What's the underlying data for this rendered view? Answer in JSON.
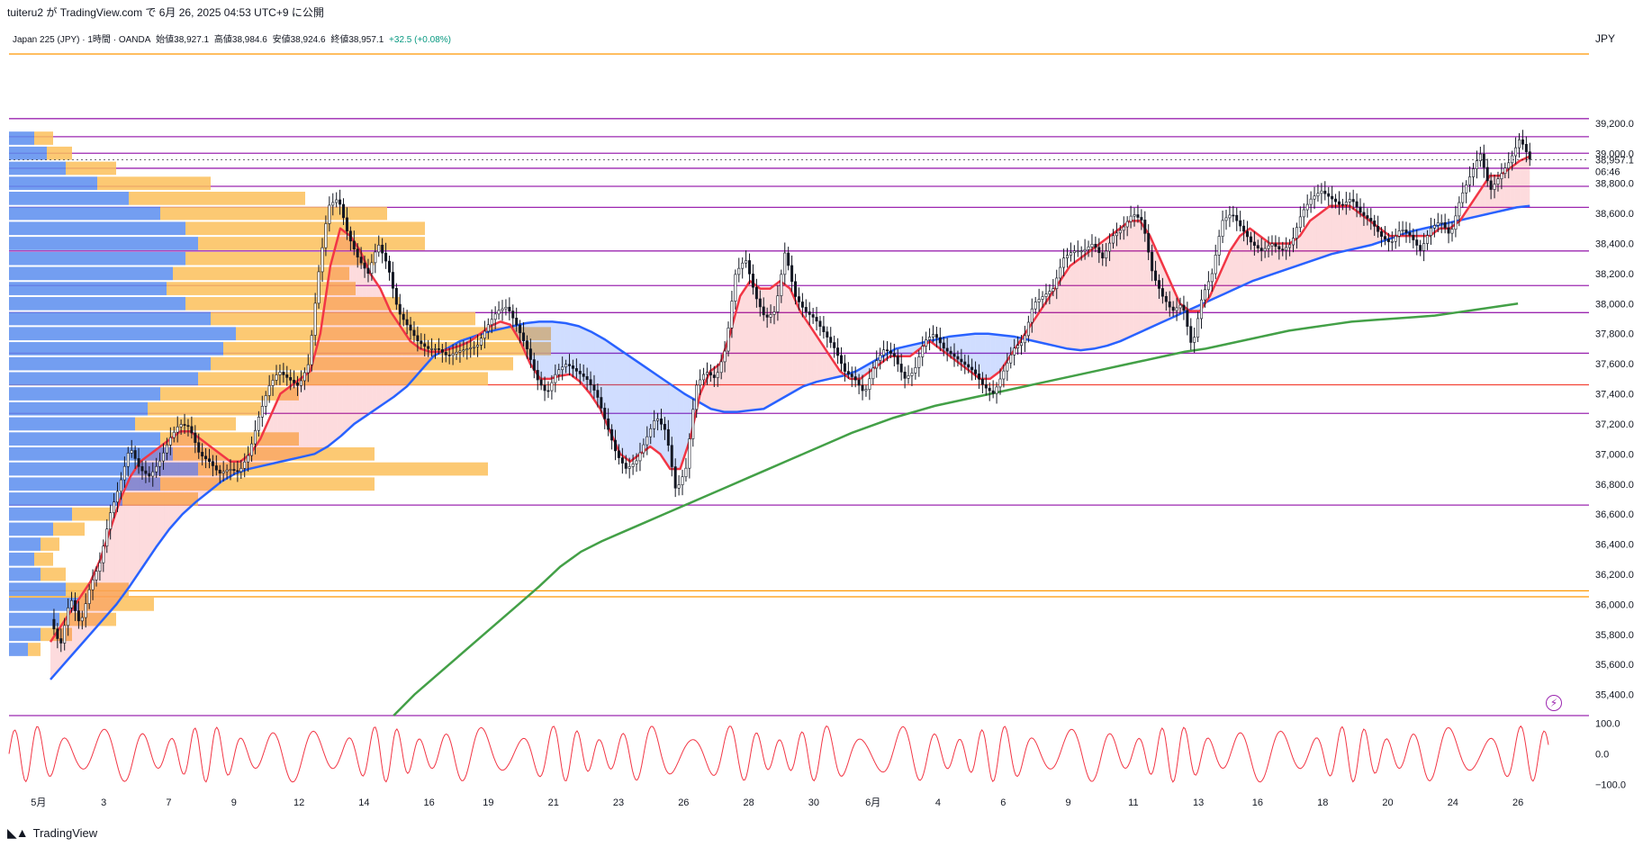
{
  "header": {
    "publish_text": "tuiteru2 が TradingView.com で 6月 26, 2025 04:53 UTC+9 に公開"
  },
  "symbol_info": {
    "name": "Japan 225 (JPY) · 1時間 · OANDA",
    "open": "始値38,927.1",
    "high": "高値38,984.6",
    "low": "安値38,924.6",
    "close": "終値38,957.1",
    "change": "+32.5 (+0.08%)"
  },
  "currency_label": "JPY",
  "last_price": "38,957.1",
  "countdown": "06:46",
  "footer": {
    "brand": "TradingView",
    "icon": "tradingview-logo-icon"
  },
  "alert_icon": "lightning-bolt-icon",
  "colors": {
    "candles": "#131722",
    "ema_fast": "#f23645",
    "ema_mid": "#2962ff",
    "sma_long": "#43a047",
    "hlines": "#9c27b0",
    "hline_red": "#f44336",
    "hline_orange": "#ff9800",
    "vp_up": "#5b8def",
    "vp_down": "#fbbf5a",
    "oscillator": "#f23645"
  },
  "chart_data": {
    "type": "candlestick",
    "timeframe": "1h",
    "y_axis": {
      "ticks": [
        "39,200.0",
        "39,000.0",
        "38,800.0",
        "38,600.0",
        "38,400.0",
        "38,200.0",
        "38,000.0",
        "37,800.0",
        "37,600.0",
        "37,400.0",
        "37,200.0",
        "37,000.0",
        "36,800.0",
        "36,600.0",
        "36,400.0",
        "36,200.0",
        "36,000.0",
        "35,800.0",
        "35,600.0",
        "35,400.0"
      ],
      "tick_values": [
        39200,
        39000,
        38800,
        38600,
        38400,
        38200,
        38000,
        37800,
        37600,
        37400,
        37200,
        37000,
        36800,
        36600,
        36400,
        36200,
        36000,
        35800,
        35600,
        35400
      ],
      "ylim": [
        35260,
        39660
      ]
    },
    "x_axis": {
      "ticks": [
        "5月",
        "3",
        "7",
        "9",
        "12",
        "14",
        "16",
        "19",
        "21",
        "23",
        "26",
        "28",
        "30",
        "6月",
        "4",
        "6",
        "9",
        "11",
        "13",
        "16",
        "18",
        "20",
        "24",
        "26"
      ],
      "tick_index": [
        0,
        11,
        22,
        33,
        44,
        55,
        66,
        76,
        87,
        98,
        109,
        120,
        131,
        141,
        152,
        163,
        174,
        185,
        196,
        206,
        217,
        228,
        239,
        250
      ],
      "xlim": [
        -5,
        262
      ]
    },
    "candles_close": [
      35900,
      35720,
      36050,
      35860,
      36120,
      36280,
      36600,
      36800,
      37050,
      36900,
      36850,
      36950,
      37100,
      37200,
      37180,
      37000,
      36950,
      36870,
      36900,
      36880,
      37000,
      37250,
      37450,
      37550,
      37500,
      37450,
      37600,
      38200,
      38650,
      38700,
      38450,
      38300,
      38200,
      38400,
      38250,
      37950,
      37850,
      37750,
      37700,
      37700,
      37650,
      37680,
      37700,
      37720,
      37850,
      37950,
      37980,
      37850,
      37700,
      37500,
      37400,
      37550,
      37600,
      37550,
      37500,
      37400,
      37200,
      37000,
      36900,
      36950,
      37100,
      37250,
      37150,
      36750,
      36900,
      37450,
      37550,
      37500,
      37700,
      38200,
      38300,
      38050,
      37900,
      37950,
      38350,
      38050,
      37950,
      37900,
      37800,
      37700,
      37550,
      37500,
      37400,
      37600,
      37700,
      37650,
      37500,
      37550,
      37750,
      37800,
      37700,
      37650,
      37600,
      37550,
      37450,
      37400,
      37550,
      37700,
      37750,
      38000,
      38050,
      38100,
      38300,
      38350,
      38350,
      38400,
      38300,
      38450,
      38500,
      38600,
      38550,
      38200,
      38050,
      37950,
      38000,
      37700,
      38050,
      38200,
      38550,
      38600,
      38500,
      38400,
      38350,
      38400,
      38350,
      38400,
      38600,
      38700,
      38750,
      38700,
      38650,
      38700,
      38600,
      38550,
      38450,
      38400,
      38500,
      38450,
      38350,
      38500,
      38550,
      38450,
      38700,
      38850,
      39000,
      38750,
      38850,
      38950,
      39100,
      38960
    ],
    "ema_fast": [
      35750,
      35850,
      35950,
      36050,
      36150,
      36300,
      36500,
      36700,
      36850,
      36950,
      37000,
      37050,
      37100,
      37150,
      37150,
      37100,
      37050,
      37000,
      36950,
      36950,
      37000,
      37100,
      37250,
      37400,
      37450,
      37500,
      37550,
      37800,
      38250,
      38500,
      38450,
      38350,
      38200,
      38100,
      37950,
      37850,
      37750,
      37700,
      37680,
      37680,
      37700,
      37720,
      37750,
      37800,
      37850,
      37880,
      37860,
      37750,
      37600,
      37500,
      37500,
      37520,
      37530,
      37480,
      37400,
      37300,
      37150,
      37000,
      36950,
      37000,
      37050,
      37000,
      36900,
      36900,
      37100,
      37400,
      37550,
      37600,
      37800,
      38050,
      38150,
      38100,
      38100,
      38150,
      38100,
      37950,
      37850,
      37750,
      37650,
      37550,
      37500,
      37500,
      37550,
      37600,
      37650,
      37650,
      37650,
      37700,
      37750,
      37700,
      37650,
      37600,
      37550,
      37500,
      37500,
      37550,
      37650,
      37750,
      37850,
      37950,
      38050,
      38150,
      38250,
      38300,
      38350,
      38400,
      38450,
      38500,
      38550,
      38550,
      38450,
      38300,
      38150,
      38000,
      37950,
      37950,
      38050,
      38200,
      38350,
      38450,
      38500,
      38450,
      38400,
      38400,
      38400,
      38450,
      38550,
      38600,
      38650,
      38650,
      38650,
      38600,
      38550,
      38500,
      38450,
      38450,
      38450,
      38450,
      38450,
      38500,
      38500,
      38550,
      38650,
      38750,
      38850,
      38850,
      38900,
      38950,
      38980
    ],
    "ema_mid": [
      35500,
      35600,
      35700,
      35800,
      35900,
      36000,
      36120,
      36250,
      36380,
      36500,
      36600,
      36680,
      36750,
      36820,
      36870,
      36900,
      36920,
      36940,
      36960,
      36980,
      37000,
      37050,
      37120,
      37200,
      37260,
      37320,
      37380,
      37450,
      37550,
      37650,
      37700,
      37750,
      37780,
      37810,
      37830,
      37850,
      37870,
      37880,
      37880,
      37870,
      37850,
      37810,
      37760,
      37700,
      37640,
      37580,
      37520,
      37460,
      37400,
      37350,
      37300,
      37280,
      37280,
      37290,
      37300,
      37350,
      37400,
      37450,
      37480,
      37500,
      37520,
      37550,
      37600,
      37650,
      37700,
      37720,
      37740,
      37760,
      37780,
      37790,
      37800,
      37800,
      37790,
      37780,
      37760,
      37740,
      37720,
      37700,
      37690,
      37700,
      37720,
      37750,
      37790,
      37830,
      37870,
      37910,
      37950,
      37990,
      38030,
      38070,
      38110,
      38150,
      38180,
      38210,
      38240,
      38270,
      38300,
      38330,
      38350,
      38370,
      38390,
      38420,
      38450,
      38480,
      38500,
      38520,
      38540,
      38560,
      38580,
      38600,
      38620,
      38640,
      38650
    ],
    "sma_long": [
      35260,
      35400,
      35520,
      35640,
      35760,
      35880,
      36000,
      36120,
      36250,
      36350,
      36420,
      36480,
      36540,
      36600,
      36660,
      36720,
      36780,
      36840,
      36900,
      36960,
      37020,
      37080,
      37140,
      37190,
      37240,
      37280,
      37320,
      37350,
      37380,
      37410,
      37440,
      37470,
      37500,
      37530,
      37560,
      37590,
      37620,
      37650,
      37680,
      37700,
      37730,
      37760,
      37790,
      37820,
      37840,
      37860,
      37880,
      37890,
      37900,
      37910,
      37920,
      37940,
      37960,
      37980,
      38000
    ],
    "horizontal_levels": [
      {
        "price": 39660,
        "color": "orange"
      },
      {
        "price": 39230,
        "color": "purple"
      },
      {
        "price": 39110,
        "color": "purple"
      },
      {
        "price": 39000,
        "color": "purple"
      },
      {
        "price": 38900,
        "color": "purple"
      },
      {
        "price": 38780,
        "color": "purple"
      },
      {
        "price": 38640,
        "color": "purple"
      },
      {
        "price": 38350,
        "color": "purple"
      },
      {
        "price": 38120,
        "color": "purple"
      },
      {
        "price": 37940,
        "color": "purple"
      },
      {
        "price": 37670,
        "color": "purple"
      },
      {
        "price": 37460,
        "color": "red"
      },
      {
        "price": 37270,
        "color": "purple"
      },
      {
        "price": 36660,
        "color": "purple"
      },
      {
        "price": 36090,
        "color": "orange"
      },
      {
        "price": 36050,
        "color": "orange"
      },
      {
        "price": 35260,
        "color": "purple"
      }
    ],
    "volume_profile": {
      "rows": [
        {
          "price": 39100,
          "up": 20,
          "down": 15
        },
        {
          "price": 39000,
          "up": 30,
          "down": 20
        },
        {
          "price": 38900,
          "up": 45,
          "down": 40
        },
        {
          "price": 38800,
          "up": 70,
          "down": 90
        },
        {
          "price": 38700,
          "up": 95,
          "down": 140
        },
        {
          "price": 38600,
          "up": 120,
          "down": 180
        },
        {
          "price": 38500,
          "up": 140,
          "down": 190
        },
        {
          "price": 38400,
          "up": 150,
          "down": 180
        },
        {
          "price": 38300,
          "up": 140,
          "down": 150
        },
        {
          "price": 38200,
          "up": 130,
          "down": 140
        },
        {
          "price": 38100,
          "up": 125,
          "down": 150
        },
        {
          "price": 38000,
          "up": 140,
          "down": 170
        },
        {
          "price": 37900,
          "up": 160,
          "down": 210
        },
        {
          "price": 37800,
          "up": 180,
          "down": 250
        },
        {
          "price": 37700,
          "up": 170,
          "down": 260
        },
        {
          "price": 37600,
          "up": 160,
          "down": 240
        },
        {
          "price": 37500,
          "up": 150,
          "down": 230
        },
        {
          "price": 37400,
          "up": 120,
          "down": 110
        },
        {
          "price": 37300,
          "up": 110,
          "down": 90
        },
        {
          "price": 37200,
          "up": 100,
          "down": 80
        },
        {
          "price": 37100,
          "up": 120,
          "down": 110
        },
        {
          "price": 37000,
          "up": 130,
          "down": 160
        },
        {
          "price": 36900,
          "up": 150,
          "down": 230
        },
        {
          "price": 36800,
          "up": 120,
          "down": 170
        },
        {
          "price": 36700,
          "up": 90,
          "down": 60
        },
        {
          "price": 36600,
          "up": 50,
          "down": 30
        },
        {
          "price": 36500,
          "up": 35,
          "down": 25
        },
        {
          "price": 36400,
          "up": 25,
          "down": 15
        },
        {
          "price": 36300,
          "up": 20,
          "down": 15
        },
        {
          "price": 36200,
          "up": 25,
          "down": 20
        },
        {
          "price": 36100,
          "up": 45,
          "down": 50
        },
        {
          "price": 36000,
          "up": 55,
          "down": 60
        },
        {
          "price": 35900,
          "up": 40,
          "down": 45
        },
        {
          "price": 35800,
          "up": 25,
          "down": 25
        },
        {
          "price": 35700,
          "up": 15,
          "down": 10
        }
      ]
    },
    "oscillator": {
      "ticks": [
        "100.0",
        "0.0",
        "−100.0"
      ],
      "tick_values": [
        100,
        0,
        -100
      ],
      "ylim": [
        -110,
        110
      ]
    }
  }
}
